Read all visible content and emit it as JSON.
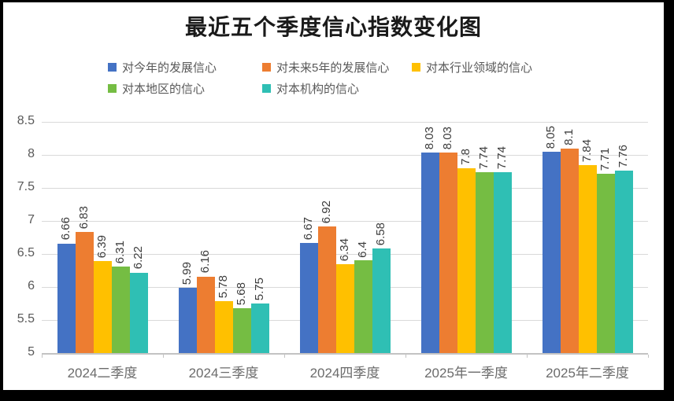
{
  "frame": {
    "background": "#ffffff",
    "border_color": "#000000"
  },
  "chart_data": {
    "type": "bar",
    "title": "最近五个季度信心指数变化图",
    "categories": [
      "2024二季度",
      "2024三季度",
      "2024四季度",
      "2025年一季度",
      "2025年二季度"
    ],
    "series": [
      {
        "name": "对今年的发展信心",
        "color": "#4472c4",
        "values": [
          6.66,
          5.99,
          6.67,
          8.03,
          8.05
        ]
      },
      {
        "name": "对未来5年的发展信心",
        "color": "#ed7d31",
        "values": [
          6.83,
          6.16,
          6.92,
          8.03,
          8.1
        ]
      },
      {
        "name": "对本行业领域的信心",
        "color": "#ffc000",
        "values": [
          6.39,
          5.78,
          6.34,
          7.8,
          7.84
        ]
      },
      {
        "name": "对本地区的信心",
        "color": "#75bd43",
        "values": [
          6.31,
          5.68,
          6.4,
          7.74,
          7.71
        ]
      },
      {
        "name": "对本机构的信心",
        "color": "#2fbfb4",
        "values": [
          6.22,
          5.75,
          6.58,
          7.74,
          7.76
        ]
      }
    ],
    "xlabel": "",
    "ylabel": "",
    "ylim": [
      5,
      8.5
    ],
    "ytick_step": 0.5,
    "yticks": [
      "5",
      "5.5",
      "6",
      "6.5",
      "7",
      "7.5",
      "8",
      "8.5"
    ],
    "grid": true,
    "legend_position": "top",
    "data_labels": "rotated-90-above-bars",
    "gridline_color": "#d9d9d9",
    "axis_text_color": "#595959",
    "data_label_color": "#3c3c3c"
  }
}
